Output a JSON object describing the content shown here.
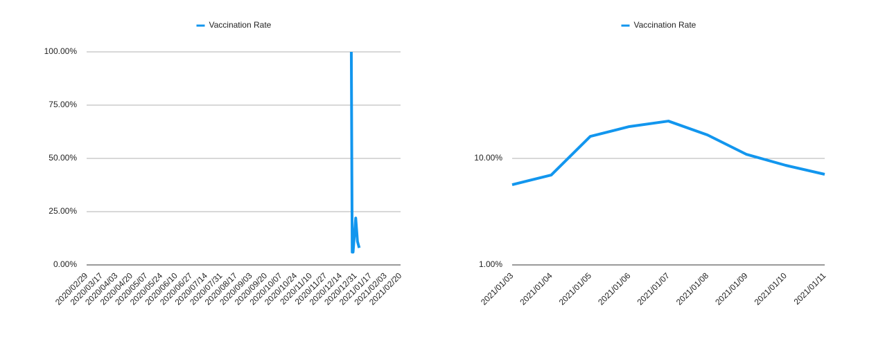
{
  "chart_data": [
    {
      "type": "line",
      "x": [
        "2020/12/26",
        "2020/12/27",
        "2020/12/28",
        "2020/12/31",
        "2021/01/02",
        "2021/01/04"
      ],
      "series": [
        {
          "name": "Vaccination Rate",
          "color": "#1296ee",
          "values": [
            100,
            6,
            6,
            22,
            11,
            8
          ]
        }
      ],
      "xlim": [
        "2020/02/29",
        "2021/02/20"
      ],
      "xticks": [
        "2020/02/29",
        "2020/03/17",
        "2020/04/03",
        "2020/04/20",
        "2020/05/07",
        "2020/05/24",
        "2020/06/10",
        "2020/06/27",
        "2020/07/14",
        "2020/07/31",
        "2020/08/17",
        "2020/09/03",
        "2020/09/20",
        "2020/10/07",
        "2020/10/24",
        "2020/11/10",
        "2020/11/27",
        "2020/12/14",
        "2020/12/31",
        "2021/01/17",
        "2021/02/03",
        "2021/02/20"
      ],
      "ylim": [
        0,
        100
      ],
      "yticks": [
        {
          "value": 0,
          "label": "0.00%"
        },
        {
          "value": 25,
          "label": "25.00%"
        },
        {
          "value": 50,
          "label": "50.00%"
        },
        {
          "value": 75,
          "label": "75.00%"
        },
        {
          "value": 100,
          "label": "100.00%"
        }
      ],
      "log_scale": false,
      "grid": true,
      "legend": "top"
    },
    {
      "type": "line",
      "x": [
        "2021/01/03",
        "2021/01/04",
        "2021/01/05",
        "2021/01/06",
        "2021/01/07",
        "2021/01/08",
        "2021/01/09",
        "2021/01/10",
        "2021/01/11"
      ],
      "series": [
        {
          "name": "Vaccination Rate",
          "color": "#1296ee",
          "values": [
            5.66,
            6.98,
            16.1,
            19.9,
            22.4,
            16.6,
            10.9,
            8.61,
            7.09
          ]
        }
      ],
      "xlim": [
        "2021/01/03",
        "2021/01/11"
      ],
      "xticks": [
        "2021/01/03",
        "2021/01/04",
        "2021/01/05",
        "2021/01/06",
        "2021/01/07",
        "2021/01/08",
        "2021/01/09",
        "2021/01/10",
        "2021/01/11"
      ],
      "ylim": [
        1,
        100
      ],
      "yticks": [
        {
          "value": 1,
          "label": "1.00%"
        },
        {
          "value": 10,
          "label": "10.00%"
        }
      ],
      "log_scale": true,
      "grid": true,
      "legend": "top"
    }
  ]
}
